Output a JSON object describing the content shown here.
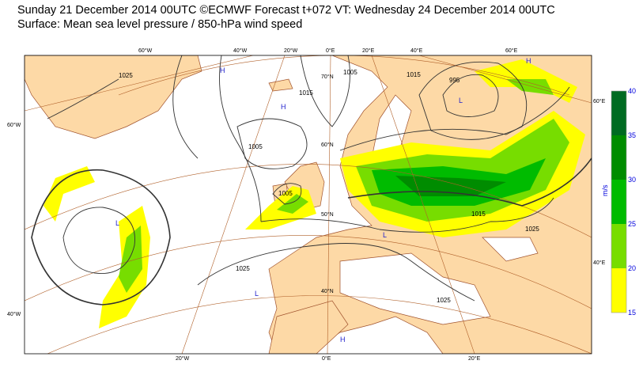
{
  "header": {
    "title": "Sunday 21 December 2014 00UTC ©ECMWF Forecast t+072 VT: Wednesday 24 December 2014 00UTC",
    "subtitle": "Surface: Mean sea level pressure / 850-hPa wind speed"
  },
  "map": {
    "colors": {
      "sea": "#ffffff",
      "land": "#fdd9a6",
      "coast": "#a0522d",
      "isobar": "#333333",
      "grid": "#b0602a"
    },
    "lon_labels_top": [
      "60°W",
      "40°W",
      "20°W",
      "0°E",
      "20°E",
      "40°E",
      "60°E"
    ],
    "lon_labels_bottom": [
      "20°W",
      "0°E",
      "20°E"
    ],
    "lat_labels_left": [
      "60°W",
      "40°W"
    ],
    "lat_labels_right": [
      "60°E",
      "40°E"
    ],
    "lat_labels_inner": [
      "70°N",
      "60°N",
      "50°N",
      "40°N"
    ],
    "isobar_labels": [
      "1025",
      "1015",
      "1005",
      "1015",
      "995",
      "1005",
      "1005",
      "1015",
      "1025",
      "1025",
      "1025"
    ],
    "pressure_centers": [
      "H",
      "H",
      "L",
      "L",
      "L",
      "H",
      "L",
      "H"
    ]
  },
  "legend": {
    "unit": "m/s",
    "ticks": [
      "15",
      "20",
      "25",
      "30",
      "35",
      "40"
    ],
    "colors": [
      "#ffff00",
      "#77dd00",
      "#00bb00",
      "#008c00",
      "#006b22"
    ]
  }
}
